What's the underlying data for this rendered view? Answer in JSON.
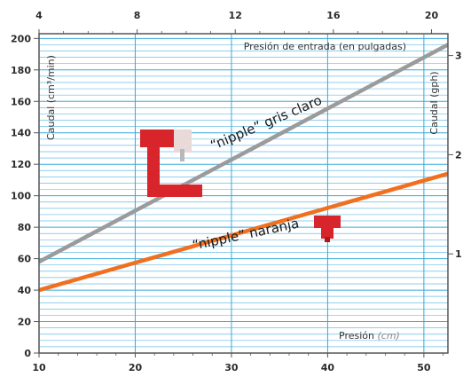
{
  "chart_data": {
    "type": "line",
    "title": "",
    "x_bottom": {
      "label": "Presión",
      "unit": "(cm)",
      "range": [
        10,
        52.5
      ],
      "ticks": [
        10,
        20,
        30,
        40,
        50
      ]
    },
    "x_top": {
      "label": "Presión de entrada (en pulgadas)",
      "range": [
        4,
        20.67
      ],
      "ticks": [
        4,
        8,
        12,
        16,
        20
      ]
    },
    "y_left": {
      "label": "Caudal (cm³/min)",
      "range": [
        0,
        203
      ],
      "ticks": [
        0,
        20,
        40,
        60,
        80,
        100,
        120,
        140,
        160,
        180,
        200
      ]
    },
    "y_right": {
      "label": "Caudal (gph)",
      "range": [
        0,
        3.22
      ],
      "ticks": [
        1,
        2,
        3
      ]
    },
    "grid": true,
    "series": [
      {
        "name": "“nipple” gris claro",
        "color": "#9b9b9b",
        "x": [
          10,
          52.5
        ],
        "y": [
          58,
          196
        ]
      },
      {
        "name": "“nipple” naranja",
        "color": "#f07020",
        "x": [
          10,
          52.5
        ],
        "y": [
          40,
          114
        ]
      }
    ]
  },
  "colors": {
    "grid": "#37a9dd",
    "frame": "#555555",
    "orange": "#f07020",
    "gray": "#9b9b9b",
    "fitting_red": "#d8242b"
  },
  "icons": [
    "red-t-fitting-icon",
    "red-valve-icon"
  ]
}
